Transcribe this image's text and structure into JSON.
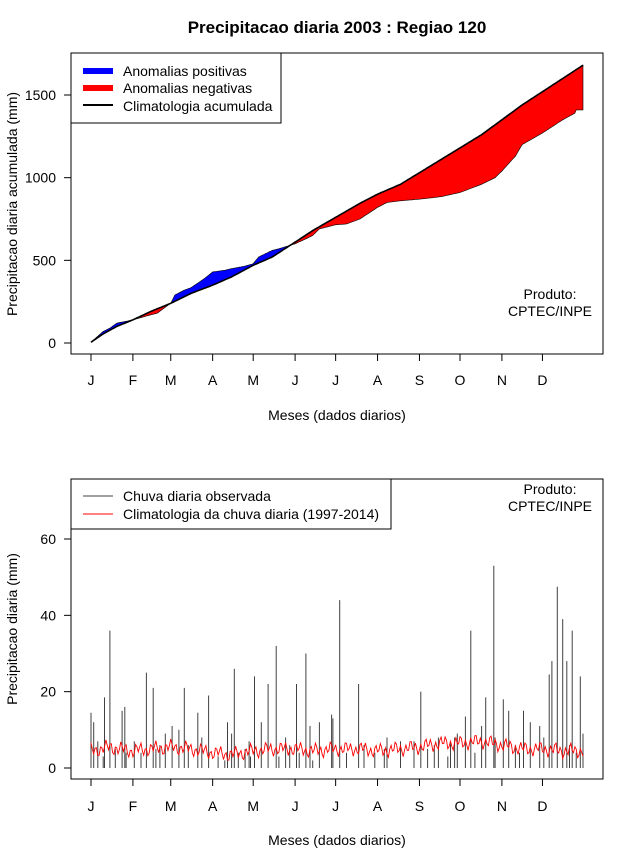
{
  "title": "Precipitacao diaria 2003 : Regiao 120",
  "chart_data": [
    {
      "type": "area",
      "xlabel": "Meses (dados diarios)",
      "ylabel": "Precipitacao diaria acumulada (mm)",
      "x_ticks": [
        "J",
        "F",
        "M",
        "A",
        "M",
        "J",
        "J",
        "A",
        "S",
        "O",
        "N",
        "D"
      ],
      "month_start_day": [
        1,
        32,
        60,
        91,
        121,
        152,
        182,
        213,
        244,
        274,
        305,
        335
      ],
      "xlim": [
        1,
        365
      ],
      "ylim": [
        0,
        1700
      ],
      "y_ticks": [
        0,
        500,
        1000,
        1500
      ],
      "legend": [
        {
          "label": "Anomalias positivas",
          "color": "#0000ff"
        },
        {
          "label": "Anomalias negativas",
          "color": "#ff0000"
        },
        {
          "label": "Climatologia acumulada",
          "color": "#000000"
        }
      ],
      "legend_position": "top-left",
      "annotation": [
        "Produto:",
        "CPTEC/INPE"
      ],
      "climatology_accumulated": {
        "days": [
          1,
          10,
          20,
          32,
          45,
          60,
          75,
          91,
          105,
          121,
          135,
          152,
          165,
          182,
          200,
          213,
          230,
          244,
          260,
          274,
          290,
          305,
          320,
          335,
          350,
          365
        ],
        "values": [
          5,
          55,
          100,
          140,
          190,
          240,
          300,
          350,
          400,
          470,
          520,
          610,
          680,
          760,
          845,
          900,
          960,
          1030,
          1110,
          1180,
          1260,
          1350,
          1440,
          1520,
          1600,
          1680
        ]
      },
      "observed_accumulated": {
        "days": [
          1,
          10,
          15,
          20,
          32,
          45,
          50,
          60,
          63,
          70,
          75,
          85,
          91,
          100,
          105,
          115,
          121,
          125,
          135,
          140,
          152,
          160,
          165,
          170,
          182,
          190,
          200,
          213,
          220,
          230,
          244,
          255,
          260,
          274,
          290,
          300,
          305,
          315,
          320,
          335,
          350,
          359,
          360,
          365
        ],
        "values": [
          5,
          70,
          90,
          120,
          140,
          170,
          180,
          240,
          290,
          320,
          335,
          390,
          430,
          440,
          450,
          465,
          480,
          520,
          560,
          570,
          600,
          630,
          650,
          690,
          715,
          720,
          750,
          820,
          850,
          860,
          870,
          880,
          885,
          910,
          960,
          1000,
          1040,
          1130,
          1200,
          1270,
          1350,
          1390,
          1410,
          1410
        ]
      }
    },
    {
      "type": "bar",
      "xlabel": "Meses (dados diarios)",
      "ylabel": "Precipitacao diaria (mm)",
      "x_ticks": [
        "J",
        "F",
        "M",
        "A",
        "M",
        "J",
        "J",
        "A",
        "S",
        "O",
        "N",
        "D"
      ],
      "xlim": [
        1,
        365
      ],
      "ylim": [
        0,
        75
      ],
      "y_ticks": [
        0,
        20,
        40,
        60
      ],
      "legend": [
        {
          "label": "Chuva diaria observada",
          "color": "#404040"
        },
        {
          "label": "Climatologia da chuva diaria (1997-2014)",
          "color": "#ff0000"
        }
      ],
      "legend_position": "top-left",
      "annotation": [
        "Produto:",
        "CPTEC/INPE"
      ],
      "observed_daily_peaks": {
        "days": [
          1,
          3,
          6,
          10,
          11,
          15,
          19,
          24,
          26,
          27,
          33,
          38,
          42,
          47,
          49,
          52,
          56,
          61,
          66,
          70,
          73,
          80,
          83,
          88,
          95,
          100,
          102,
          105,
          107,
          110,
          115,
          118,
          119,
          122,
          127,
          132,
          138,
          140,
          145,
          148,
          153,
          155,
          160,
          163,
          165,
          170,
          179,
          180,
          185,
          190,
          199,
          203,
          211,
          218,
          220,
          230,
          240,
          245,
          250,
          255,
          258,
          265,
          267,
          270,
          272,
          278,
          282,
          285,
          290,
          293,
          299,
          300,
          306,
          310,
          315,
          318,
          321,
          326,
          333,
          336,
          340,
          342,
          346,
          350,
          353,
          355,
          357,
          360,
          363,
          365
        ],
        "values": [
          14.5,
          12,
          7,
          3,
          18.5,
          36,
          5,
          15,
          16,
          4,
          7,
          4,
          25,
          21,
          5,
          6,
          9,
          11,
          10,
          21,
          6,
          14.5,
          8,
          19,
          3,
          2,
          12,
          9,
          26,
          4,
          5,
          7,
          3,
          24,
          12,
          22,
          32,
          3,
          8,
          6,
          22,
          4,
          30,
          11,
          2,
          12,
          14,
          13,
          44,
          4,
          22,
          6,
          4,
          5,
          8,
          7,
          7,
          20,
          5,
          6,
          8,
          3,
          7,
          8,
          9,
          13.5,
          36,
          4,
          11,
          18.5,
          53,
          8,
          18,
          15,
          6,
          4,
          15,
          12,
          11,
          8,
          24.5,
          28,
          47.5,
          39,
          28,
          6,
          36,
          4,
          24,
          9
        ]
      },
      "climatology_daily": {
        "days": [
          1,
          15,
          30,
          45,
          60,
          75,
          91,
          105,
          121,
          135,
          152,
          165,
          182,
          200,
          213,
          230,
          244,
          260,
          274,
          290,
          305,
          320,
          335,
          350,
          365
        ],
        "values": [
          4.5,
          5.5,
          4.5,
          5,
          5.5,
          5,
          4,
          3.5,
          4.5,
          5,
          5,
          4.5,
          5,
          5,
          4.5,
          5,
          5.5,
          6.5,
          6.5,
          7,
          6,
          5,
          5,
          4.5,
          4.5
        ]
      }
    }
  ]
}
